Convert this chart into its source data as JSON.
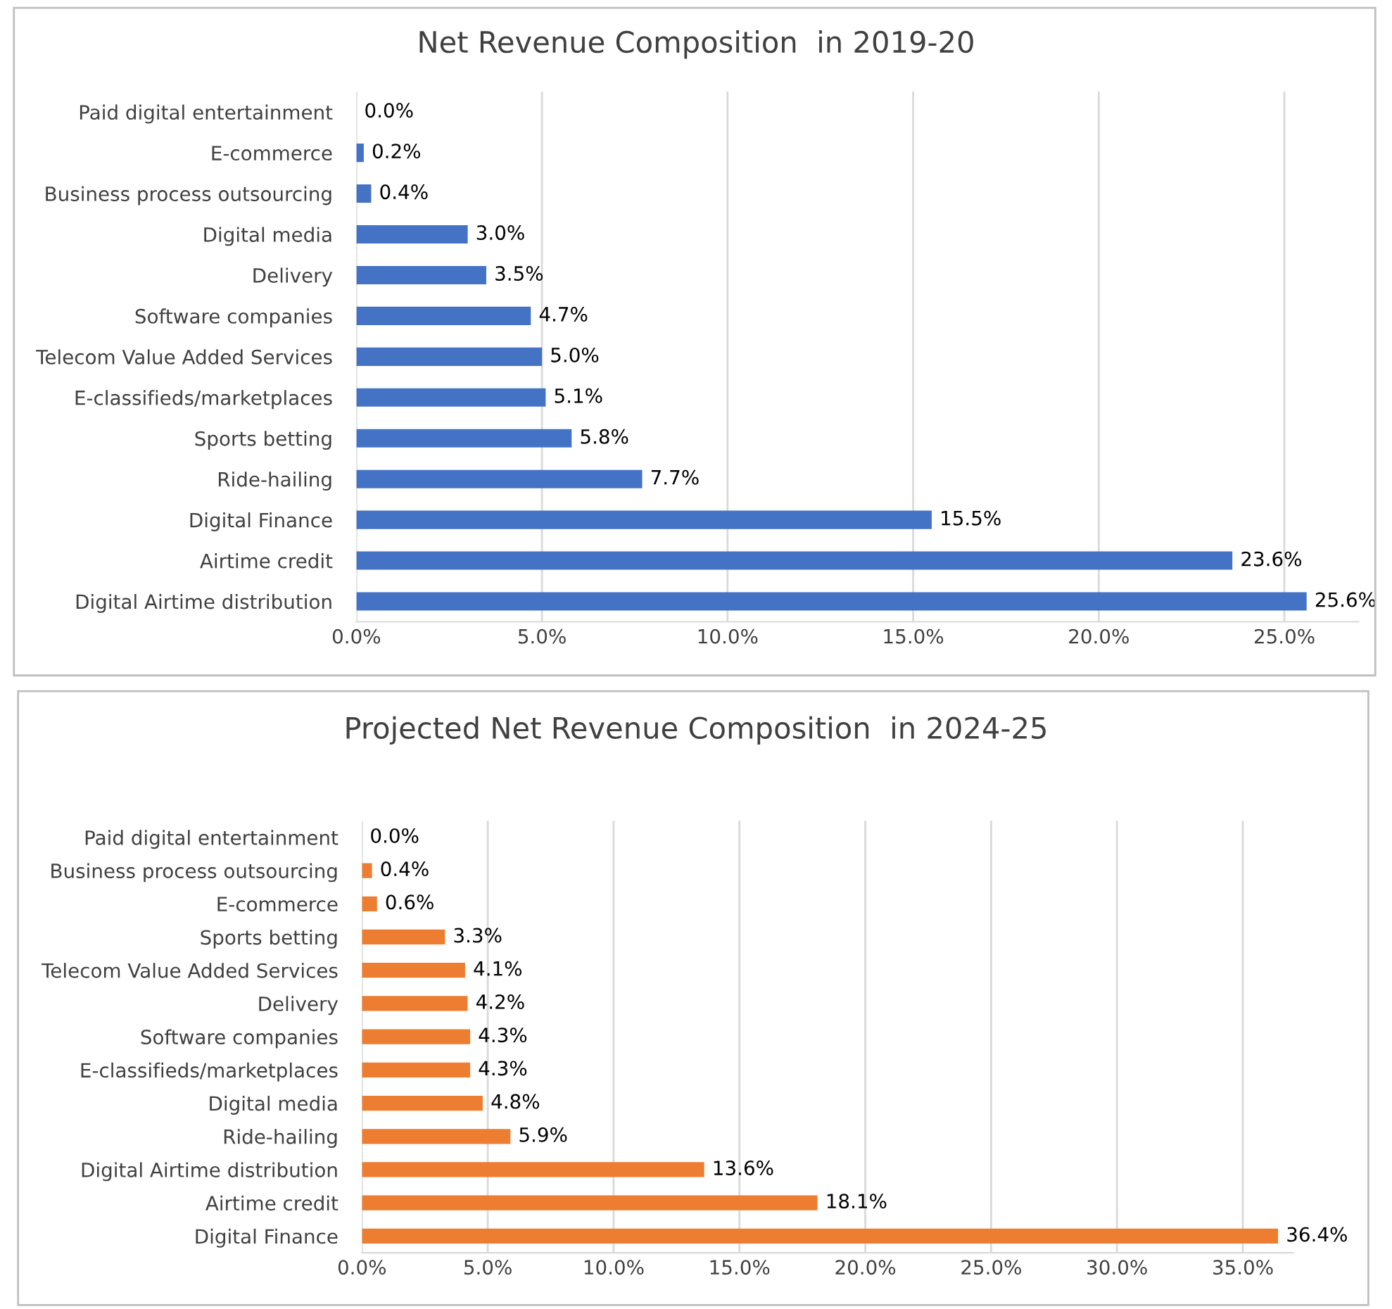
{
  "chart_data": [
    {
      "type": "bar",
      "orientation": "horizontal",
      "title": "Net Revenue Composition  in 2019-20",
      "categories": [
        "Paid digital entertainment",
        "E-commerce",
        "Business process outsourcing",
        "Digital media",
        "Delivery",
        "Software companies",
        "Telecom Value Added Services",
        "E-classifieds/marketplaces",
        "Sports betting",
        "Ride-hailing",
        "Digital Finance",
        "Airtime credit",
        "Digital Airtime distribution"
      ],
      "values": [
        0.0,
        0.2,
        0.4,
        3.0,
        3.5,
        4.7,
        5.0,
        5.1,
        5.8,
        7.7,
        15.5,
        23.6,
        25.6
      ],
      "value_labels": [
        "0.0%",
        "0.2%",
        "0.4%",
        "3.0%",
        "3.5%",
        "4.7%",
        "5.0%",
        "5.1%",
        "5.8%",
        "7.7%",
        "15.5%",
        "23.6%",
        "25.6%"
      ],
      "color": "#4472c4",
      "xlim": [
        0,
        27
      ],
      "xticks": [
        {
          "value": 0,
          "label": "0.0%"
        },
        {
          "value": 5,
          "label": "5.0%"
        },
        {
          "value": 10,
          "label": "10.0%"
        },
        {
          "value": 15,
          "label": "15.0%"
        },
        {
          "value": 20,
          "label": "20.0%"
        },
        {
          "value": 25,
          "label": "25.0%"
        }
      ],
      "grid": "x",
      "legend": false
    },
    {
      "type": "bar",
      "orientation": "horizontal",
      "title": "Projected Net Revenue Composition  in 2024-25",
      "categories": [
        "Paid digital entertainment",
        "Business process outsourcing",
        "E-commerce",
        "Sports betting",
        "Telecom Value Added Services",
        "Delivery",
        "Software companies",
        "E-classifieds/marketplaces",
        "Digital media",
        "Ride-hailing",
        "Digital Airtime distribution",
        "Airtime credit",
        "Digital Finance"
      ],
      "values": [
        0.0,
        0.4,
        0.6,
        3.3,
        4.1,
        4.2,
        4.3,
        4.3,
        4.8,
        5.9,
        13.6,
        18.1,
        36.4
      ],
      "value_labels": [
        "0.0%",
        "0.4%",
        "0.6%",
        "3.3%",
        "4.1%",
        "4.2%",
        "4.3%",
        "4.3%",
        "4.8%",
        "5.9%",
        "13.6%",
        "18.1%",
        "36.4%"
      ],
      "color": "#ed7d31",
      "xlim": [
        0,
        37
      ],
      "xticks": [
        {
          "value": 0,
          "label": "0.0%"
        },
        {
          "value": 5,
          "label": "5.0%"
        },
        {
          "value": 10,
          "label": "10.0%"
        },
        {
          "value": 15,
          "label": "15.0%"
        },
        {
          "value": 20,
          "label": "20.0%"
        },
        {
          "value": 25,
          "label": "25.0%"
        },
        {
          "value": 30,
          "label": "30.0%"
        },
        {
          "value": 35,
          "label": "35.0%"
        }
      ],
      "grid": "x",
      "legend": false
    }
  ]
}
